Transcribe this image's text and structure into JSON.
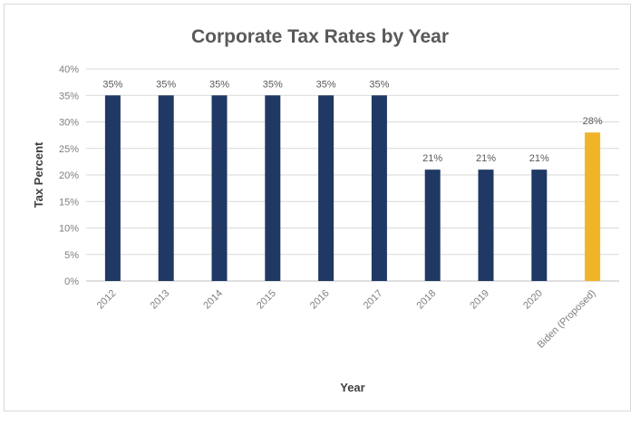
{
  "chart_data": {
    "type": "bar",
    "title": "Corporate Tax Rates by Year",
    "xlabel": "Year",
    "ylabel": "Tax Percent",
    "categories": [
      "2012",
      "2013",
      "2014",
      "2015",
      "2016",
      "2017",
      "2018",
      "2019",
      "2020",
      "Biden (Proposed)"
    ],
    "values": [
      35,
      35,
      35,
      35,
      35,
      35,
      21,
      21,
      21,
      28
    ],
    "data_labels": [
      "35%",
      "35%",
      "35%",
      "35%",
      "35%",
      "35%",
      "21%",
      "21%",
      "21%",
      "28%"
    ],
    "bar_colors": [
      "#1f3864",
      "#1f3864",
      "#1f3864",
      "#1f3864",
      "#1f3864",
      "#1f3864",
      "#1f3864",
      "#1f3864",
      "#1f3864",
      "#f0b429"
    ],
    "ylim": [
      0,
      40
    ],
    "yticks": [
      0,
      5,
      10,
      15,
      20,
      25,
      30,
      35,
      40
    ],
    "ytick_labels": [
      "0%",
      "5%",
      "10%",
      "15%",
      "20%",
      "25%",
      "30%",
      "35%",
      "40%"
    ],
    "grid": true,
    "legend": "none"
  }
}
